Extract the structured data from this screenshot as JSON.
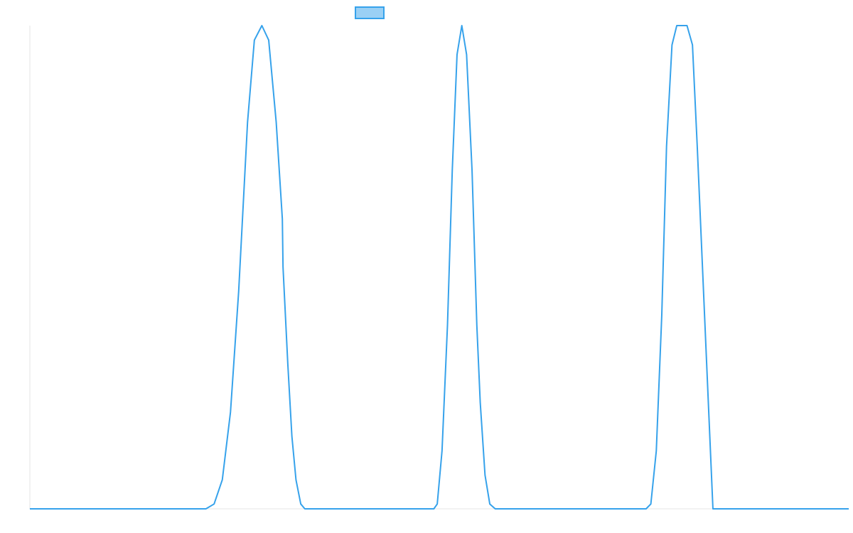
{
  "chart_data": {
    "type": "line",
    "title": "",
    "xlabel": "",
    "ylabel": "",
    "legend": {
      "placement": "top-center",
      "swatch_fill": "#9ad0f5",
      "swatch_stroke": "#36a2eb"
    },
    "xlim": [
      0,
      1200
    ],
    "ylim": [
      0,
      1
    ],
    "grid": false,
    "series": [
      {
        "color": "#36a2eb",
        "x": [
          0,
          258,
          270,
          282,
          294,
          306,
          319,
          329,
          340,
          350,
          361,
          370,
          371,
          378,
          384,
          390,
          397,
          403,
          411,
          444,
          592,
          597,
          604,
          612,
          619,
          626,
          633,
          640,
          648,
          655,
          660,
          667,
          674,
          682,
          690,
          716,
          903,
          910,
          918,
          926,
          933,
          941,
          948,
          955,
          963,
          971,
          978,
          1001,
          1200
        ],
        "y": [
          0,
          0,
          0.01,
          0.06,
          0.2,
          0.45,
          0.8,
          0.97,
          1.0,
          0.97,
          0.8,
          0.6,
          0.5,
          0.3,
          0.15,
          0.06,
          0.01,
          0.0,
          0,
          0,
          0,
          0.01,
          0.12,
          0.38,
          0.7,
          0.94,
          1.0,
          0.94,
          0.7,
          0.38,
          0.22,
          0.07,
          0.01,
          0.0,
          0,
          0,
          0,
          0.01,
          0.12,
          0.4,
          0.75,
          0.96,
          1.0,
          1.0,
          1.0,
          0.96,
          0.75,
          0.0,
          0
        ]
      }
    ]
  }
}
